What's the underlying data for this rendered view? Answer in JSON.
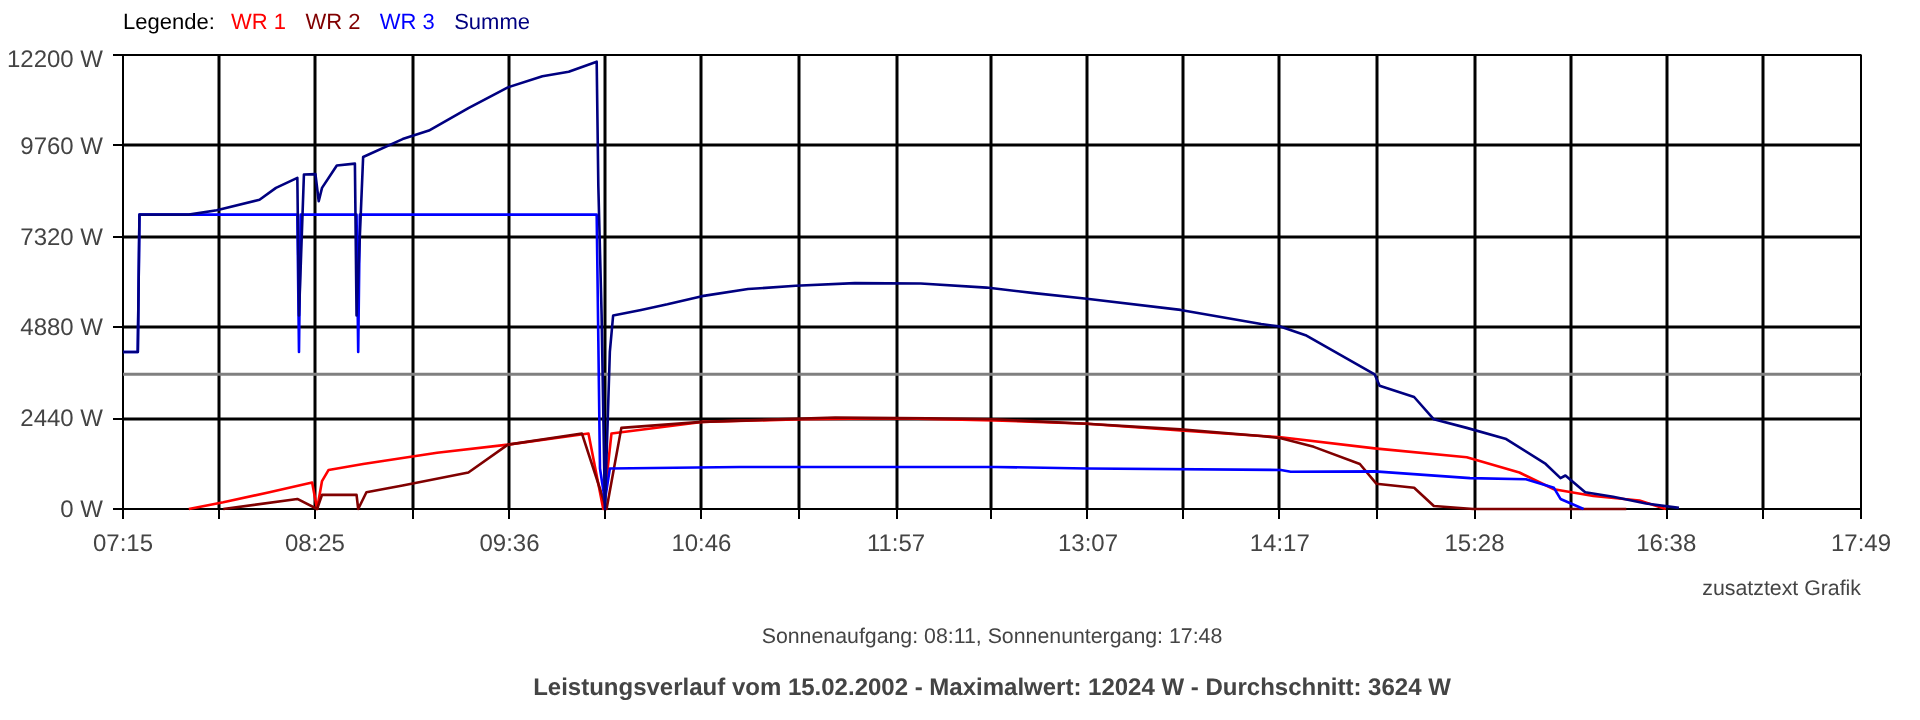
{
  "chart_data": {
    "type": "line",
    "title": "Leistungsverlauf vom 15.02.2002 - Maximalwert: 12024 W - Durchschnitt: 3624 W",
    "subtitle": "Sonnenaufgang: 08:11, Sonnenuntergang: 17:48",
    "annotations": [
      "zusatztext Grafik"
    ],
    "legend_title": "Legende:",
    "legend": "top left",
    "grid": true,
    "xlim": [
      7.25,
      17.817
    ],
    "ylim": [
      0,
      12200
    ],
    "xticks": [
      {
        "value": 7.25,
        "label": "07:15"
      },
      {
        "value": 7.833,
        "label": null
      },
      {
        "value": 8.417,
        "label": "08:25"
      },
      {
        "value": 9.008,
        "label": null
      },
      {
        "value": 9.6,
        "label": "09:36"
      },
      {
        "value": 10.183,
        "label": null
      },
      {
        "value": 10.767,
        "label": "10:46"
      },
      {
        "value": 11.358,
        "label": null
      },
      {
        "value": 11.95,
        "label": "11:57"
      },
      {
        "value": 12.533,
        "label": null
      },
      {
        "value": 13.117,
        "label": "13:07"
      },
      {
        "value": 13.7,
        "label": null
      },
      {
        "value": 14.283,
        "label": "14:17"
      },
      {
        "value": 14.875,
        "label": null
      },
      {
        "value": 15.467,
        "label": "15:28"
      },
      {
        "value": 16.05,
        "label": null
      },
      {
        "value": 16.633,
        "label": "16:38"
      },
      {
        "value": 17.225,
        "label": null
      },
      {
        "value": 17.817,
        "label": "17:49"
      }
    ],
    "yticks": [
      {
        "value": 0,
        "label": "0 W"
      },
      {
        "value": 2440,
        "label": "2440 W"
      },
      {
        "value": 4880,
        "label": "4880 W"
      },
      {
        "value": 7320,
        "label": "7320 W"
      },
      {
        "value": 9760,
        "label": "9760 W"
      },
      {
        "value": 12200,
        "label": "12200 W"
      }
    ],
    "ref_lines": [
      {
        "axis": "y",
        "value": 3624,
        "color": "#808080"
      }
    ],
    "series": [
      {
        "name": "WR 1",
        "color": "#ff0000",
        "x": [
          7.65,
          7.86,
          8.14,
          8.4,
          8.43,
          8.46,
          8.5,
          8.71,
          9.16,
          9.59,
          10.08,
          10.17,
          10.22,
          10.77,
          11.38,
          11.95,
          12.55,
          13.11,
          13.68,
          14.17,
          14.29,
          14.86,
          15.42,
          15.74,
          15.95,
          16.19,
          16.47,
          16.63
        ],
        "values": [
          0,
          180,
          450,
          710,
          0,
          750,
          1050,
          1210,
          1510,
          1730,
          2030,
          0,
          2030,
          2340,
          2410,
          2440,
          2380,
          2290,
          2110,
          1960,
          1930,
          1630,
          1390,
          980,
          530,
          350,
          230,
          0
        ]
      },
      {
        "name": "WR 2",
        "color": "#800000",
        "x": [
          7.86,
          8.31,
          8.43,
          8.46,
          8.67,
          8.68,
          8.73,
          8.95,
          9.35,
          9.59,
          10.04,
          10.19,
          10.28,
          10.77,
          11.58,
          12.14,
          12.55,
          13.11,
          13.68,
          14.17,
          14.29,
          14.49,
          14.77,
          14.87,
          15.1,
          15.22,
          15.46,
          16.39
        ],
        "values": [
          0,
          270,
          0,
          380,
          380,
          0,
          450,
          630,
          980,
          1730,
          2030,
          0,
          2180,
          2340,
          2460,
          2440,
          2410,
          2290,
          2140,
          1960,
          1900,
          1670,
          1210,
          680,
          570,
          80,
          0,
          0
        ]
      },
      {
        "name": "WR 3",
        "color": "#0000ff",
        "x": [
          7.25,
          7.34,
          7.35,
          8.31,
          8.32,
          8.33,
          8.67,
          8.68,
          8.69,
          10.13,
          10.14,
          10.15,
          10.18,
          10.21,
          11.0,
          12.55,
          13.11,
          14.29,
          14.35,
          14.86,
          15.44,
          15.78,
          15.95,
          15.99,
          16.13
        ],
        "values": [
          4220,
          4220,
          7910,
          7910,
          4220,
          7910,
          7910,
          4220,
          7910,
          7910,
          4520,
          1090,
          230,
          1090,
          1130,
          1130,
          1090,
          1050,
          1000,
          1010,
          830,
          800,
          570,
          270,
          0
        ]
      },
      {
        "name": "Summe",
        "color": "#000080",
        "x": [
          7.25,
          7.34,
          7.35,
          7.65,
          7.82,
          8.08,
          8.18,
          8.31,
          8.32,
          8.35,
          8.42,
          8.44,
          8.46,
          8.55,
          8.66,
          8.67,
          8.71,
          8.95,
          9.11,
          9.35,
          9.59,
          9.8,
          9.96,
          10.13,
          10.14,
          10.16,
          10.18,
          10.21,
          10.23,
          10.4,
          10.56,
          10.77,
          11.05,
          11.34,
          11.7,
          12.1,
          12.5,
          12.79,
          13.11,
          13.68,
          14.17,
          14.29,
          14.44,
          14.86,
          14.89,
          15.1,
          15.22,
          15.42,
          15.66,
          15.9,
          15.99,
          16.02,
          16.14,
          16.31,
          16.51,
          16.71
        ],
        "values": [
          4220,
          4220,
          7910,
          7910,
          8030,
          8310,
          8630,
          8900,
          5200,
          8990,
          9000,
          8270,
          8630,
          9230,
          9280,
          5200,
          9460,
          9940,
          10170,
          10770,
          11330,
          11630,
          11750,
          12020,
          8680,
          5200,
          0,
          4220,
          5200,
          5350,
          5500,
          5720,
          5910,
          6000,
          6070,
          6060,
          5950,
          5800,
          5650,
          5350,
          4970,
          4900,
          4670,
          3620,
          3310,
          3010,
          2410,
          2180,
          1880,
          1210,
          830,
          900,
          450,
          330,
          150,
          30
        ]
      }
    ]
  }
}
